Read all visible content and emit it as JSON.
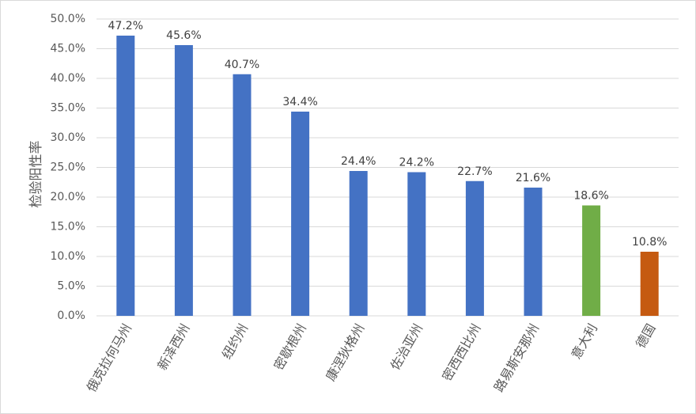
{
  "chart_data": {
    "type": "bar",
    "title": "",
    "xlabel": "",
    "ylabel": "检验阳性率",
    "categories": [
      "俄克拉何马州",
      "新泽西州",
      "纽约州",
      "密歇根州",
      "康涅狄格州",
      "佐治亚州",
      "密西西比州",
      "路易斯安那州",
      "意大利",
      "德国"
    ],
    "values": [
      47.2,
      45.6,
      40.7,
      34.4,
      24.4,
      24.2,
      22.7,
      21.6,
      18.6,
      10.8
    ],
    "value_labels": [
      "47.2%",
      "45.6%",
      "40.7%",
      "34.4%",
      "24.4%",
      "24.2%",
      "22.7%",
      "21.6%",
      "18.6%",
      "10.8%"
    ],
    "bar_colors": [
      "#4472C4",
      "#4472C4",
      "#4472C4",
      "#4472C4",
      "#4472C4",
      "#4472C4",
      "#4472C4",
      "#4472C4",
      "#70AD47",
      "#C55A11"
    ],
    "ylim": [
      0,
      50
    ],
    "yticks": [
      0,
      5,
      10,
      15,
      20,
      25,
      30,
      35,
      40,
      45,
      50
    ],
    "ytick_labels": [
      "0.0%",
      "5.0%",
      "10.0%",
      "15.0%",
      "20.0%",
      "25.0%",
      "30.0%",
      "35.0%",
      "40.0%",
      "45.0%",
      "50.0%"
    ],
    "grid": true,
    "legend": "none",
    "gridline_color": "#d9d9d9"
  }
}
